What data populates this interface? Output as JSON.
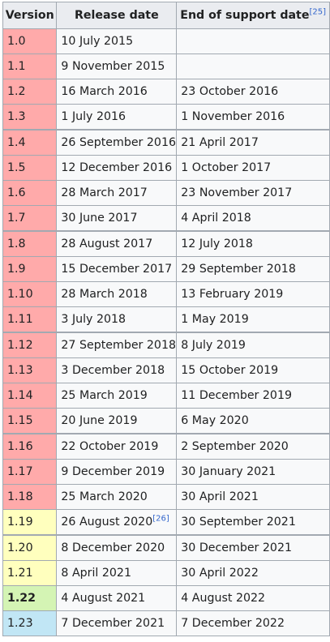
{
  "columns": {
    "version": "Version",
    "release_date": "Release date",
    "end_of_support": "End of support date",
    "end_of_support_ref": "[25]"
  },
  "status_colors": {
    "unsupported": "#ffaaaa",
    "maintenance": "#ffffbe",
    "latest": "#d4f4b4",
    "preview": "#c1e6f5"
  },
  "rows": [
    {
      "version": "1.0",
      "release": "10 July 2015",
      "release_ref": "",
      "end": "",
      "status": "unsupported",
      "group_start": false
    },
    {
      "version": "1.1",
      "release": "9 November 2015",
      "release_ref": "",
      "end": "",
      "status": "unsupported",
      "group_start": false
    },
    {
      "version": "1.2",
      "release": "16 March 2016",
      "release_ref": "",
      "end": "23 October 2016",
      "status": "unsupported",
      "group_start": false
    },
    {
      "version": "1.3",
      "release": "1 July 2016",
      "release_ref": "",
      "end": "1 November 2016",
      "status": "unsupported",
      "group_start": false
    },
    {
      "version": "1.4",
      "release": "26 September 2016",
      "release_ref": "",
      "end": "21 April 2017",
      "status": "unsupported",
      "group_start": true
    },
    {
      "version": "1.5",
      "release": "12 December 2016",
      "release_ref": "",
      "end": "1 October 2017",
      "status": "unsupported",
      "group_start": false
    },
    {
      "version": "1.6",
      "release": "28 March 2017",
      "release_ref": "",
      "end": "23 November 2017",
      "status": "unsupported",
      "group_start": false
    },
    {
      "version": "1.7",
      "release": "30 June 2017",
      "release_ref": "",
      "end": "4 April 2018",
      "status": "unsupported",
      "group_start": false
    },
    {
      "version": "1.8",
      "release": "28 August 2017",
      "release_ref": "",
      "end": "12 July 2018",
      "status": "unsupported",
      "group_start": true
    },
    {
      "version": "1.9",
      "release": "15 December 2017",
      "release_ref": "",
      "end": "29 September 2018",
      "status": "unsupported",
      "group_start": false
    },
    {
      "version": "1.10",
      "release": "28 March 2018",
      "release_ref": "",
      "end": "13 February 2019",
      "status": "unsupported",
      "group_start": false
    },
    {
      "version": "1.11",
      "release": "3 July 2018",
      "release_ref": "",
      "end": "1 May 2019",
      "status": "unsupported",
      "group_start": false
    },
    {
      "version": "1.12",
      "release": "27 September 2018",
      "release_ref": "",
      "end": "8 July 2019",
      "status": "unsupported",
      "group_start": true
    },
    {
      "version": "1.13",
      "release": "3 December 2018",
      "release_ref": "",
      "end": "15 October 2019",
      "status": "unsupported",
      "group_start": false
    },
    {
      "version": "1.14",
      "release": "25 March 2019",
      "release_ref": "",
      "end": "11 December 2019",
      "status": "unsupported",
      "group_start": false
    },
    {
      "version": "1.15",
      "release": "20 June 2019",
      "release_ref": "",
      "end": "6 May 2020",
      "status": "unsupported",
      "group_start": false
    },
    {
      "version": "1.16",
      "release": "22 October 2019",
      "release_ref": "",
      "end": "2 September 2020",
      "status": "unsupported",
      "group_start": true
    },
    {
      "version": "1.17",
      "release": "9 December 2019",
      "release_ref": "",
      "end": "30 January 2021",
      "status": "unsupported",
      "group_start": false
    },
    {
      "version": "1.18",
      "release": "25 March 2020",
      "release_ref": "",
      "end": "30 April 2021",
      "status": "unsupported",
      "group_start": false
    },
    {
      "version": "1.19",
      "release": "26 August 2020",
      "release_ref": "[26]",
      "end": "30 September 2021",
      "status": "maintenance",
      "group_start": false
    },
    {
      "version": "1.20",
      "release": "8 December 2020",
      "release_ref": "",
      "end": "30 December 2021",
      "status": "maintenance",
      "group_start": true
    },
    {
      "version": "1.21",
      "release": "8 April 2021",
      "release_ref": "",
      "end": "30 April 2022",
      "status": "maintenance",
      "group_start": false
    },
    {
      "version": "1.22",
      "release": "4 August 2021",
      "release_ref": "",
      "end": "4 August 2022",
      "status": "latest",
      "group_start": false
    },
    {
      "version": "1.23",
      "release": "7 December 2021",
      "release_ref": "",
      "end": "7 December 2022",
      "status": "preview",
      "group_start": false
    }
  ]
}
